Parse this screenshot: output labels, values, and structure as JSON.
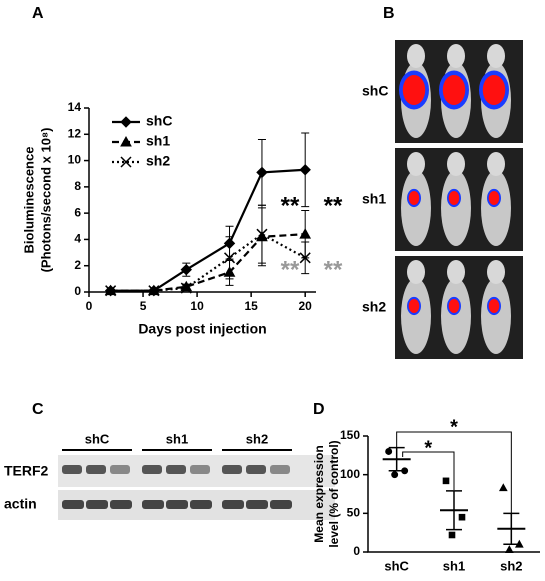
{
  "panel_labels": [
    "A",
    "B",
    "C",
    "D"
  ],
  "imaging": {
    "rows": [
      "shC",
      "sh1",
      "sh2"
    ]
  },
  "blot": {
    "groups": [
      "shC",
      "sh1",
      "sh2"
    ],
    "rows": [
      "TERF2",
      "actin"
    ]
  },
  "chart_data": [
    {
      "type": "line",
      "xlabel": "Days post injection",
      "ylabel": [
        "Bioluminescence",
        "(Photons/second x 10⁸)"
      ],
      "x": [
        2,
        6,
        9,
        13,
        16,
        20
      ],
      "xlim": [
        0,
        21
      ],
      "xticks": [
        0,
        5,
        10,
        15,
        20
      ],
      "ylim": [
        0,
        14
      ],
      "yticks": [
        0,
        2,
        4,
        6,
        8,
        10,
        12,
        14
      ],
      "legend": "top-left",
      "series": [
        {
          "name": "shC",
          "color": "#000000",
          "dash": "solid",
          "marker": "diamond",
          "values": [
            0.1,
            0.1,
            1.7,
            3.7,
            9.1,
            9.3
          ],
          "errors": [
            0.1,
            0.1,
            0.5,
            1.3,
            2.5,
            2.8
          ]
        },
        {
          "name": "sh1",
          "color": "#000000",
          "dash": "dashed",
          "marker": "triangle",
          "values": [
            0.1,
            0.1,
            0.4,
            1.5,
            4.2,
            4.4
          ],
          "errors": [
            0.1,
            0.1,
            0.2,
            1.0,
            2.2,
            1.8
          ]
        },
        {
          "name": "sh2",
          "color": "#000000",
          "dash": "dotted",
          "marker": "x",
          "values": [
            0.1,
            0.1,
            0.3,
            2.6,
            4.4,
            2.6
          ],
          "errors": [
            0.1,
            0.1,
            0.2,
            1.6,
            2.2,
            1.2
          ]
        }
      ],
      "annotations": [
        {
          "text": "**",
          "color": "#000000"
        },
        {
          "text": "**",
          "color": "#000000"
        },
        {
          "text": "**",
          "color": "#999999"
        },
        {
          "text": "**",
          "color": "#999999"
        }
      ]
    },
    {
      "type": "dot",
      "ylabel": [
        "Mean expression",
        "level (% of control)"
      ],
      "categories": [
        "shC",
        "sh1",
        "sh2"
      ],
      "markers": [
        "circle",
        "square",
        "triangle"
      ],
      "points": [
        [
          130,
          105,
          100
        ],
        [
          92,
          45,
          22
        ],
        [
          83,
          10,
          3
        ]
      ],
      "means": [
        120,
        54,
        30
      ],
      "errors": [
        15,
        25,
        20
      ],
      "ylim": [
        0,
        150
      ],
      "yticks": [
        0,
        50,
        100,
        150
      ],
      "annotations": [
        {
          "text": "*"
        },
        {
          "text": "*"
        }
      ]
    }
  ]
}
